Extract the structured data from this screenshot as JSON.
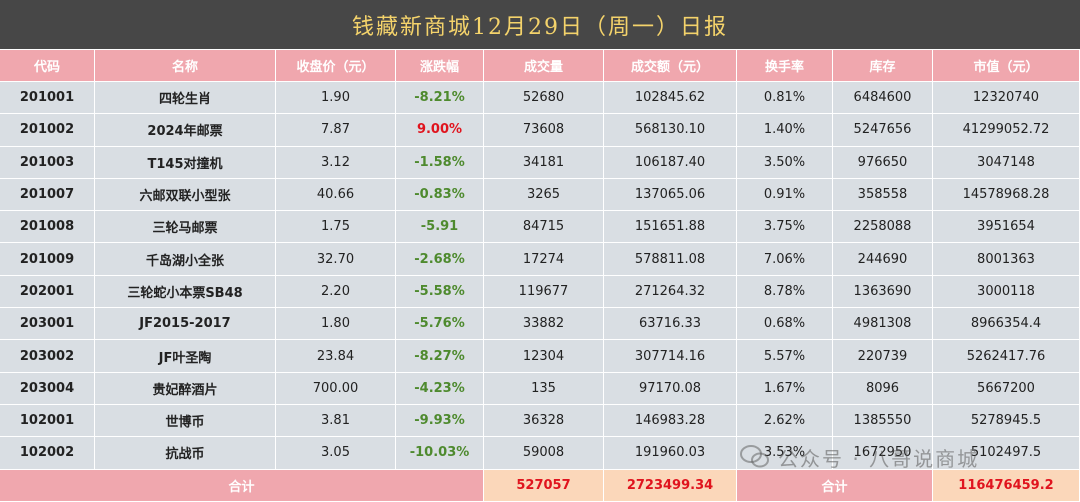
{
  "title": "钱藏新商城12月29日（周一）日报",
  "columns": [
    "代码",
    "名称",
    "收盘价（元）",
    "涨跌幅",
    "成交量",
    "成交额（元）",
    "换手率",
    "库存",
    "市值（元）"
  ],
  "rows": [
    {
      "code": "201001",
      "name": "四轮生肖",
      "close": "1.90",
      "change": "-8.21%",
      "volume": "52680",
      "amount": "102845.62",
      "turnover": "0.81%",
      "stock": "6484600",
      "cap": "12320740"
    },
    {
      "code": "201002",
      "name": "2024年邮票",
      "close": "7.87",
      "change": "9.00%",
      "volume": "73608",
      "amount": "568130.10",
      "turnover": "1.40%",
      "stock": "5247656",
      "cap": "41299052.72"
    },
    {
      "code": "201003",
      "name": "T145对撞机",
      "close": "3.12",
      "change": "-1.58%",
      "volume": "34181",
      "amount": "106187.40",
      "turnover": "3.50%",
      "stock": "976650",
      "cap": "3047148"
    },
    {
      "code": "201007",
      "name": "六邮双联小型张",
      "close": "40.66",
      "change": "-0.83%",
      "volume": "3265",
      "amount": "137065.06",
      "turnover": "0.91%",
      "stock": "358558",
      "cap": "14578968.28"
    },
    {
      "code": "201008",
      "name": "三轮马邮票",
      "close": "1.75",
      "change": "-5.91",
      "volume": "84715",
      "amount": "151651.88",
      "turnover": "3.75%",
      "stock": "2258088",
      "cap": "3951654"
    },
    {
      "code": "201009",
      "name": "千岛湖小全张",
      "close": "32.70",
      "change": "-2.68%",
      "volume": "17274",
      "amount": "578811.08",
      "turnover": "7.06%",
      "stock": "244690",
      "cap": "8001363"
    },
    {
      "code": "202001",
      "name": "三轮蛇小本票SB48",
      "close": "2.20",
      "change": "-5.58%",
      "volume": "119677",
      "amount": "271264.32",
      "turnover": "8.78%",
      "stock": "1363690",
      "cap": "3000118"
    },
    {
      "code": "203001",
      "name": "JF2015-2017",
      "close": "1.80",
      "change": "-5.76%",
      "volume": "33882",
      "amount": "63716.33",
      "turnover": "0.68%",
      "stock": "4981308",
      "cap": "8966354.4"
    },
    {
      "code": "203002",
      "name": "JF叶圣陶",
      "close": "23.84",
      "change": "-8.27%",
      "volume": "12304",
      "amount": "307714.16",
      "turnover": "5.57%",
      "stock": "220739",
      "cap": "5262417.76"
    },
    {
      "code": "203004",
      "name": "贵妃醉酒片",
      "close": "700.00",
      "change": "-4.23%",
      "volume": "135",
      "amount": "97170.08",
      "turnover": "1.67%",
      "stock": "8096",
      "cap": "5667200"
    },
    {
      "code": "102001",
      "name": "世博币",
      "close": "3.81",
      "change": "-9.93%",
      "volume": "36328",
      "amount": "146983.28",
      "turnover": "2.62%",
      "stock": "1385550",
      "cap": "5278945.5"
    },
    {
      "code": "102002",
      "name": "抗战币",
      "close": "3.05",
      "change": "-10.03%",
      "volume": "59008",
      "amount": "191960.03",
      "turnover": "3.53%",
      "stock": "1672950",
      "cap": "5102497.5"
    }
  ],
  "total": {
    "label": "合计",
    "volume": "527057",
    "amount": "2723499.34",
    "label2": "合计",
    "cap": "116476459.2"
  },
  "watermark": "公众号 · 八哥说商城",
  "colors": {
    "header": "#f0a7ae",
    "row": "#d9dee3",
    "down": "#4e8a2e",
    "up": "#e0141e",
    "title_bar": "#474747",
    "title_text": "#f4d36b"
  }
}
